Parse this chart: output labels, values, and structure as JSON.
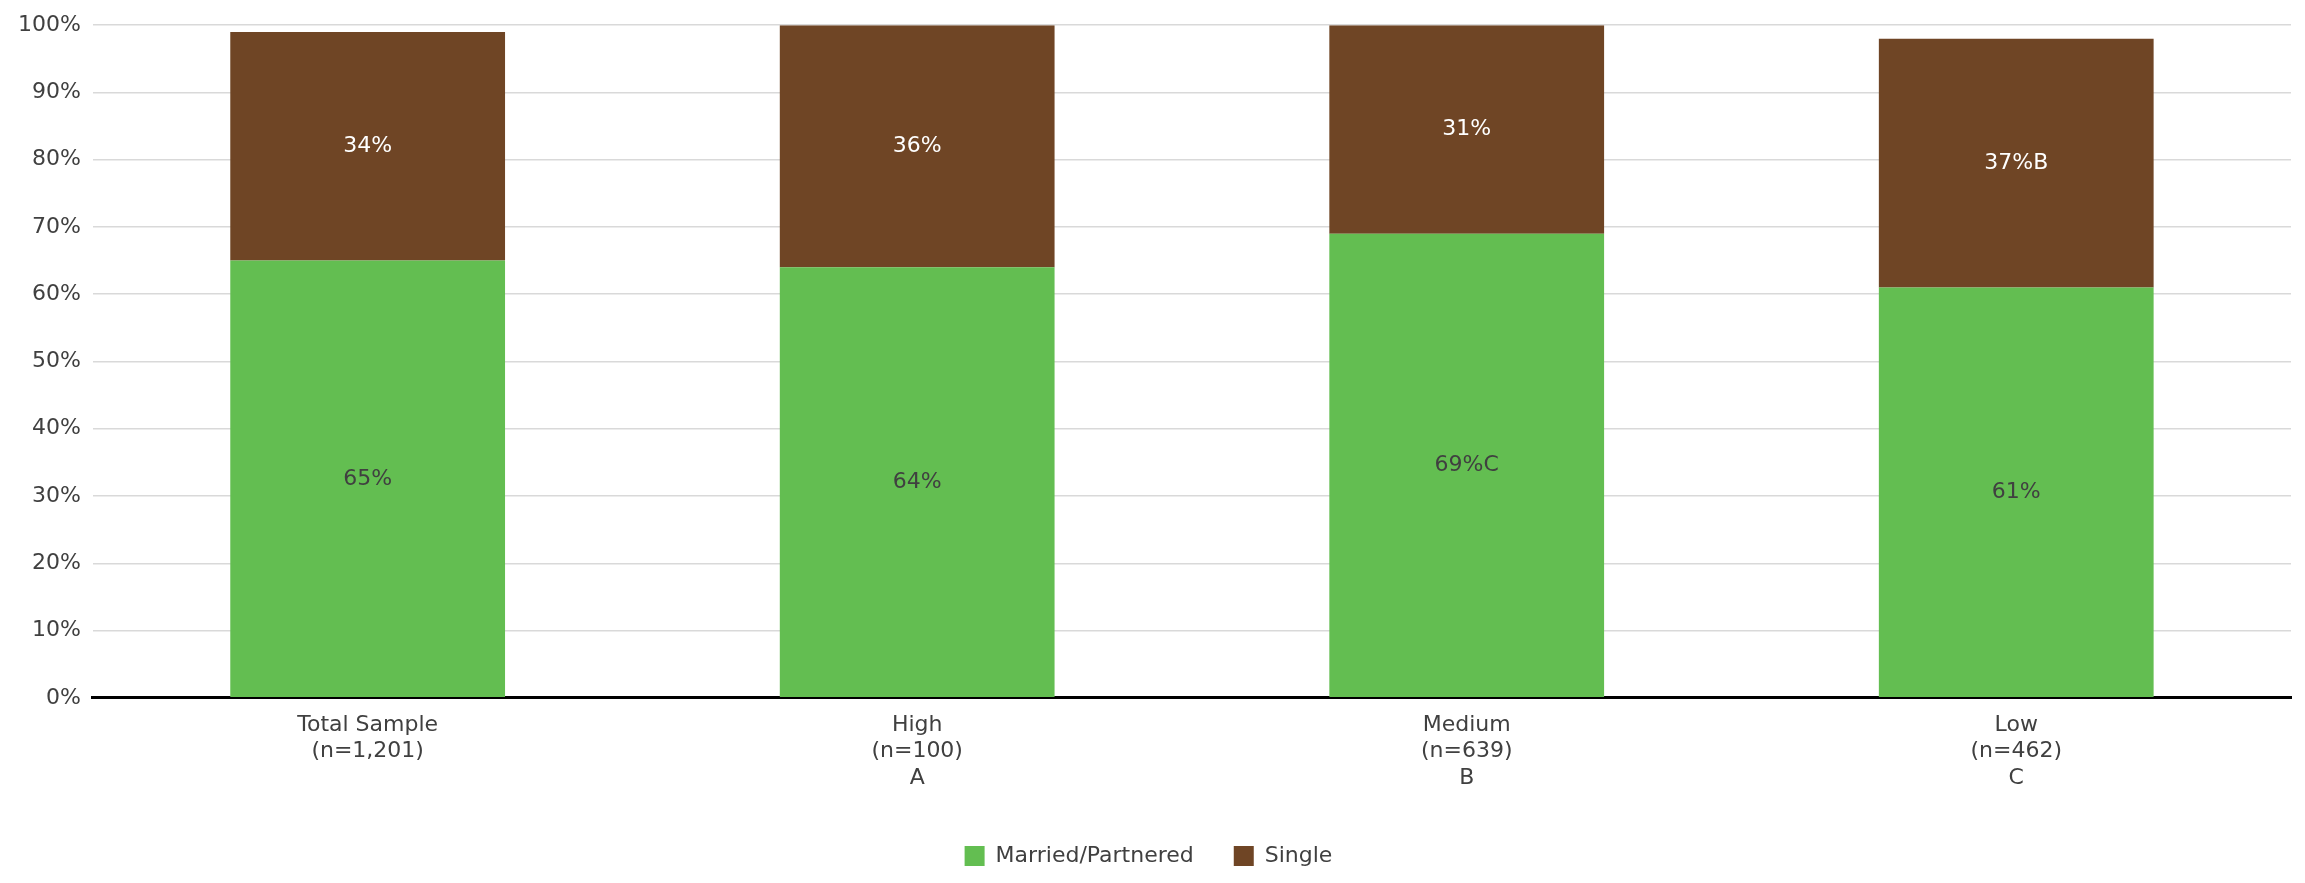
{
  "chart_data": {
    "type": "bar",
    "stacked": true,
    "categories": [
      "Total Sample\n(n=1,201)",
      "High\n(n=100)\nA",
      "Medium\n(n=639)\nB",
      "Low\n(n=462)\nC"
    ],
    "series": [
      {
        "name": "Married/Partnered",
        "color": "#63be51",
        "values": [
          65,
          64,
          69,
          61
        ],
        "value_labels": [
          "65%",
          "64%",
          "69%C",
          "61%"
        ]
      },
      {
        "name": "Single",
        "color": "#6f4525",
        "values": [
          34,
          36,
          31,
          37
        ],
        "value_labels": [
          "34%",
          "36%",
          "31%",
          "37%B"
        ]
      }
    ],
    "ylim": [
      0,
      100
    ],
    "yticks": [
      {
        "value": 0,
        "label": "0%"
      },
      {
        "value": 10,
        "label": "10%"
      },
      {
        "value": 20,
        "label": "20%"
      },
      {
        "value": 30,
        "label": "30%"
      },
      {
        "value": 40,
        "label": "40%"
      },
      {
        "value": 50,
        "label": "50%"
      },
      {
        "value": 60,
        "label": "60%"
      },
      {
        "value": 70,
        "label": "70%"
      },
      {
        "value": 80,
        "label": "80%"
      },
      {
        "value": 90,
        "label": "90%"
      },
      {
        "value": 100,
        "label": "100%"
      }
    ],
    "grid": "y",
    "legend": "bottom"
  }
}
